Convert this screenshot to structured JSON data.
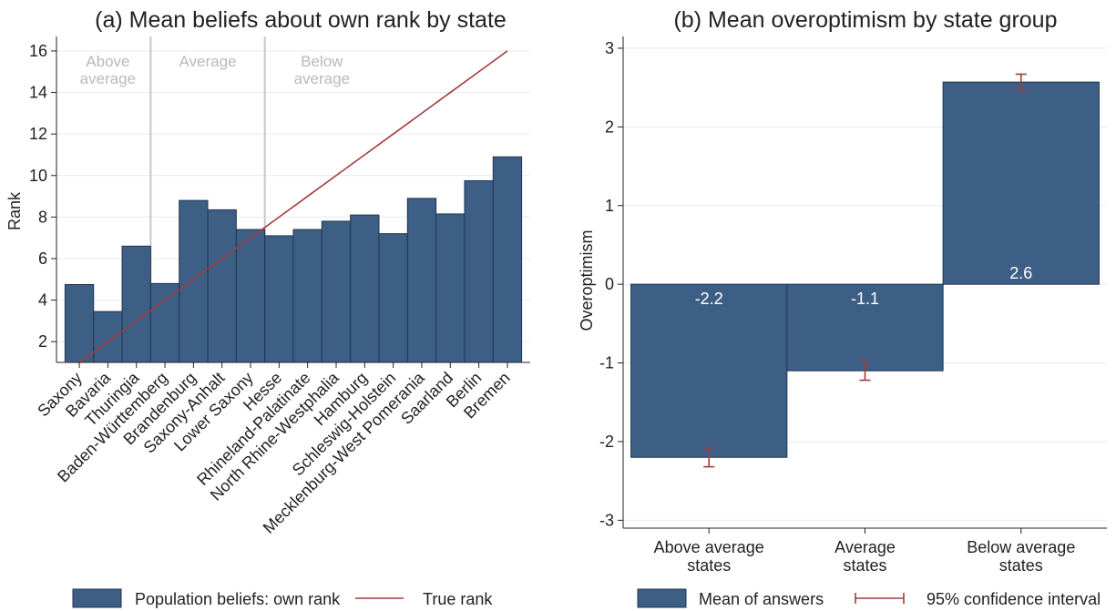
{
  "colors": {
    "bar": "#3e5f85",
    "bar_edge": "#1f3550",
    "line": "#a23c3c",
    "grid": "#e6ebef",
    "divider": "#c8c8c8",
    "group_label": "#b9b9b9",
    "text": "#222222",
    "bar_label": "#ffffff"
  },
  "chart_data": [
    {
      "type": "bar",
      "title": "(a) Mean beliefs about own rank by state",
      "xlabel": "",
      "ylabel": "Rank",
      "ylim": [
        1,
        16.7
      ],
      "yticks": [
        2,
        4,
        6,
        8,
        10,
        12,
        14,
        16
      ],
      "grid": true,
      "categories": [
        "Saxony",
        "Bavaria",
        "Thuringia",
        "Baden-Württemberg",
        "Brandenburg",
        "Saxony-Anhalt",
        "Lower Saxony",
        "Hesse",
        "Rhineland-Palatinate",
        "North Rhine-Westphalia",
        "Hamburg",
        "Schleswig-Holstein",
        "Mecklenburg-West Pomerania",
        "Saarland",
        "Berlin",
        "Bremen"
      ],
      "series": [
        {
          "name": "Population beliefs: own rank",
          "type": "bar",
          "values": [
            4.75,
            3.45,
            6.6,
            4.8,
            8.8,
            8.35,
            7.4,
            7.1,
            7.4,
            7.8,
            8.1,
            7.2,
            8.9,
            8.15,
            9.75,
            10.9
          ]
        },
        {
          "name": "True rank",
          "type": "line",
          "values": [
            1,
            2,
            3,
            4,
            5,
            6,
            7,
            8,
            9,
            10,
            11,
            12,
            13,
            14,
            15,
            16
          ]
        }
      ],
      "groups": [
        {
          "label": [
            "Above",
            "average"
          ],
          "from": 1,
          "to": 3
        },
        {
          "label": [
            "Average"
          ],
          "from": 4,
          "to": 7
        },
        {
          "label": [
            "Below",
            "average"
          ],
          "from": 8,
          "to": 16
        }
      ],
      "legend": {
        "position": "bottom",
        "items": [
          "Population beliefs: own rank",
          "True rank"
        ]
      }
    },
    {
      "type": "bar",
      "title": "(b) Mean overoptimism by state group",
      "xlabel": "",
      "ylabel": "Overoptimism",
      "ylim": [
        -3.1,
        3.15
      ],
      "yticks": [
        -3,
        -2,
        -1,
        0,
        1,
        2,
        3
      ],
      "grid": true,
      "categories": [
        [
          "Above average",
          "states"
        ],
        [
          "Average",
          "states"
        ],
        [
          "Below average",
          "states"
        ]
      ],
      "series": [
        {
          "name": "Mean of answers",
          "values": [
            -2.2,
            -1.1,
            2.57
          ],
          "data_labels": [
            "-2.2",
            "-1.1",
            "2.6"
          ]
        },
        {
          "name": "95% confidence interval",
          "type": "errorbar",
          "low": [
            -2.32,
            -1.22,
            2.47
          ],
          "high": [
            -2.08,
            -0.98,
            2.67
          ]
        }
      ],
      "legend": {
        "position": "bottom",
        "items": [
          "Mean of answers",
          "95% confidence interval"
        ]
      }
    }
  ]
}
